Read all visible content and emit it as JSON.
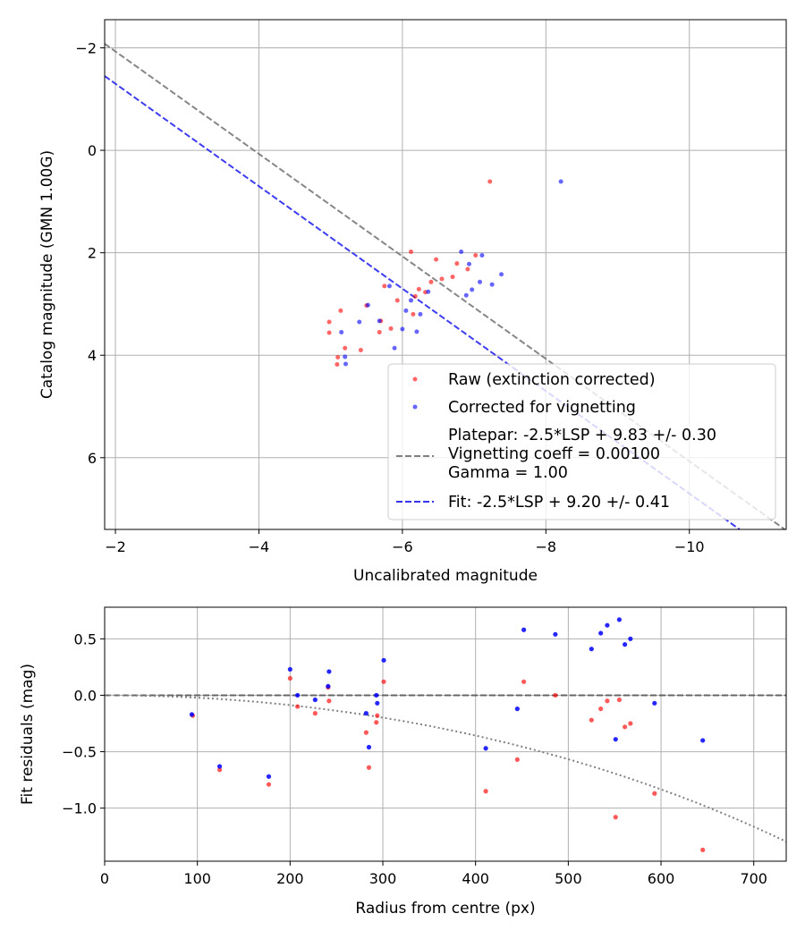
{
  "chart_data": [
    {
      "type": "scatter",
      "xlabel": "Uncalibrated magnitude",
      "ylabel": "Catalog magnitude (GMN 1.00G)",
      "xlim": [
        -1.85,
        -11.35
      ],
      "ylim": [
        7.4,
        -2.55
      ],
      "xticks": [
        -2,
        -4,
        -6,
        -8,
        -10
      ],
      "xtick_labels": [
        "−2",
        "−4",
        "−6",
        "−8",
        "−10"
      ],
      "yticks": [
        -2,
        0,
        2,
        4,
        6
      ],
      "ytick_labels": [
        "−2",
        "0",
        "2",
        "4",
        "6"
      ],
      "grid": true,
      "legend_position": "lower-right",
      "series": [
        {
          "name": "Raw (extinction corrected)",
          "color": "#ff0000",
          "marker": "circle",
          "points": [
            [
              -7.22,
              0.61
            ],
            [
              -6.12,
              1.98
            ],
            [
              -6.47,
              2.13
            ],
            [
              -6.76,
              2.21
            ],
            [
              -6.91,
              2.32
            ],
            [
              -7.02,
              2.05
            ],
            [
              -6.55,
              2.51
            ],
            [
              -6.7,
              2.47
            ],
            [
              -6.4,
              2.57
            ],
            [
              -6.18,
              2.85
            ],
            [
              -6.23,
              2.71
            ],
            [
              -6.32,
              2.77
            ],
            [
              -5.75,
              2.65
            ],
            [
              -5.93,
              2.93
            ],
            [
              -6.15,
              3.2
            ],
            [
              -5.5,
              3.03
            ],
            [
              -5.7,
              3.33
            ],
            [
              -5.68,
              3.55
            ],
            [
              -5.84,
              3.48
            ],
            [
              -5.14,
              3.13
            ],
            [
              -4.98,
              3.35
            ],
            [
              -4.98,
              3.56
            ],
            [
              -5.2,
              3.86
            ],
            [
              -5.42,
              3.9
            ],
            [
              -5.1,
              4.04
            ],
            [
              -5.09,
              4.18
            ]
          ]
        },
        {
          "name": "Corrected for vignetting",
          "color": "#0000ff",
          "marker": "circle",
          "points": [
            [
              -8.21,
              0.61
            ],
            [
              -6.82,
              1.98
            ],
            [
              -6.93,
              2.22
            ],
            [
              -7.11,
              2.05
            ],
            [
              -7.38,
              2.42
            ],
            [
              -7.08,
              2.57
            ],
            [
              -6.97,
              2.72
            ],
            [
              -6.89,
              2.83
            ],
            [
              -7.25,
              2.62
            ],
            [
              -6.36,
              2.76
            ],
            [
              -6.12,
              2.93
            ],
            [
              -5.82,
              2.65
            ],
            [
              -6.05,
              3.13
            ],
            [
              -6.25,
              3.2
            ],
            [
              -5.52,
              3.02
            ],
            [
              -5.4,
              3.35
            ],
            [
              -5.68,
              3.33
            ],
            [
              -6.0,
              3.49
            ],
            [
              -6.2,
              3.54
            ],
            [
              -5.15,
              3.55
            ],
            [
              -5.89,
              3.86
            ],
            [
              -5.2,
              4.03
            ],
            [
              -5.21,
              4.17
            ]
          ]
        }
      ],
      "lines": [
        {
          "name": "Platepar: -2.5*LSP + 9.83 +/- 0.30\nVignetting coeff = 0.00100\nGamma = 1.00",
          "color": "#808080",
          "style": "dashed",
          "slope": -1,
          "intercept": -3.93
        },
        {
          "name": "Fit: -2.5*LSP + 9.20 +/- 0.41",
          "color": "#3333ee",
          "style": "dashed",
          "slope": -1,
          "intercept": -3.3
        }
      ]
    },
    {
      "type": "scatter",
      "xlabel": "Radius from centre (px)",
      "ylabel": "Fit residuals (mag)",
      "xlim": [
        0,
        735
      ],
      "ylim": [
        -1.47,
        0.78
      ],
      "xticks": [
        0,
        100,
        200,
        300,
        400,
        500,
        600,
        700
      ],
      "xtick_labels": [
        "0",
        "100",
        "200",
        "300",
        "400",
        "500",
        "600",
        "700"
      ],
      "yticks": [
        0.5,
        0,
        -0.5,
        -1.0
      ],
      "ytick_labels": [
        "0.5",
        "0.0",
        "−0.5",
        "−1.0"
      ],
      "grid": true,
      "series": [
        {
          "name": "",
          "color": "#ff0000",
          "marker": "circle",
          "points": [
            [
              95,
              -0.18
            ],
            [
              124,
              -0.66
            ],
            [
              177,
              -0.79
            ],
            [
              200,
              0.15
            ],
            [
              208,
              -0.1
            ],
            [
              227,
              -0.16
            ],
            [
              241,
              0.07
            ],
            [
              242,
              -0.05
            ],
            [
              282,
              -0.33
            ],
            [
              285,
              -0.64
            ],
            [
              293,
              -0.24
            ],
            [
              294,
              -0.18
            ],
            [
              301,
              0.12
            ],
            [
              411,
              -0.85
            ],
            [
              445,
              -0.57
            ],
            [
              452,
              0.12
            ],
            [
              486,
              0.0
            ],
            [
              525,
              -0.22
            ],
            [
              535,
              -0.12
            ],
            [
              542,
              -0.05
            ],
            [
              551,
              -1.08
            ],
            [
              555,
              -0.04
            ],
            [
              561,
              -0.28
            ],
            [
              567,
              -0.25
            ],
            [
              593,
              -0.87
            ],
            [
              645,
              -1.37
            ]
          ]
        },
        {
          "name": "",
          "color": "#0000ff",
          "marker": "circle",
          "points": [
            [
              94,
              -0.17
            ],
            [
              124,
              -0.63
            ],
            [
              177,
              -0.72
            ],
            [
              200,
              0.23
            ],
            [
              208,
              0.0
            ],
            [
              227,
              -0.04
            ],
            [
              241,
              0.08
            ],
            [
              242,
              0.21
            ],
            [
              282,
              -0.16
            ],
            [
              285,
              -0.46
            ],
            [
              293,
              0.0
            ],
            [
              294,
              -0.07
            ],
            [
              301,
              0.31
            ],
            [
              411,
              -0.47
            ],
            [
              445,
              -0.12
            ],
            [
              452,
              0.58
            ],
            [
              486,
              0.54
            ],
            [
              525,
              0.41
            ],
            [
              535,
              0.55
            ],
            [
              542,
              0.62
            ],
            [
              551,
              -0.39
            ],
            [
              555,
              0.67
            ],
            [
              561,
              0.45
            ],
            [
              567,
              0.5
            ],
            [
              593,
              -0.07
            ],
            [
              645,
              -0.4
            ]
          ]
        }
      ],
      "lines": [
        {
          "name": "",
          "color": "#555555",
          "style": "dashed",
          "kind": "horizontal",
          "y": 0
        },
        {
          "name": "",
          "color": "#808080",
          "style": "dotted",
          "kind": "vignetting",
          "coeff": 0.001,
          "x_range": [
            0,
            735
          ]
        }
      ]
    }
  ]
}
